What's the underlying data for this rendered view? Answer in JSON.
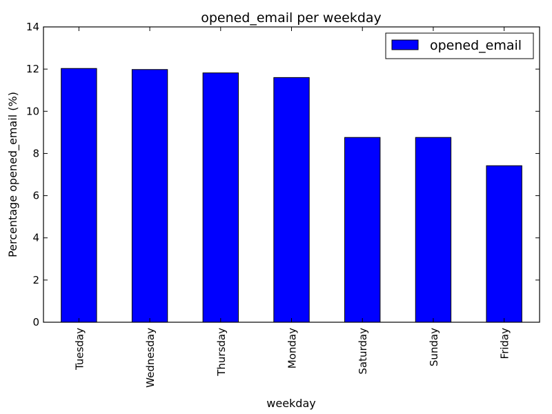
{
  "chart_data": {
    "type": "bar",
    "title": "opened_email per weekday",
    "xlabel": "weekday",
    "ylabel": "Percentage opened_email (%)",
    "categories": [
      "Tuesday",
      "Wednesday",
      "Thursday",
      "Monday",
      "Saturday",
      "Sunday",
      "Friday"
    ],
    "series": [
      {
        "name": "opened_email",
        "values": [
          12.03,
          11.98,
          11.82,
          11.6,
          8.76,
          8.76,
          7.42
        ]
      }
    ],
    "ylim": [
      0,
      14
    ],
    "yticks": [
      "0",
      "2",
      "4",
      "6",
      "8",
      "10",
      "12",
      "14"
    ],
    "grid": false,
    "legend_position": "top-right",
    "colors": {
      "bar": "#0000ff",
      "edge": "#000000"
    }
  }
}
